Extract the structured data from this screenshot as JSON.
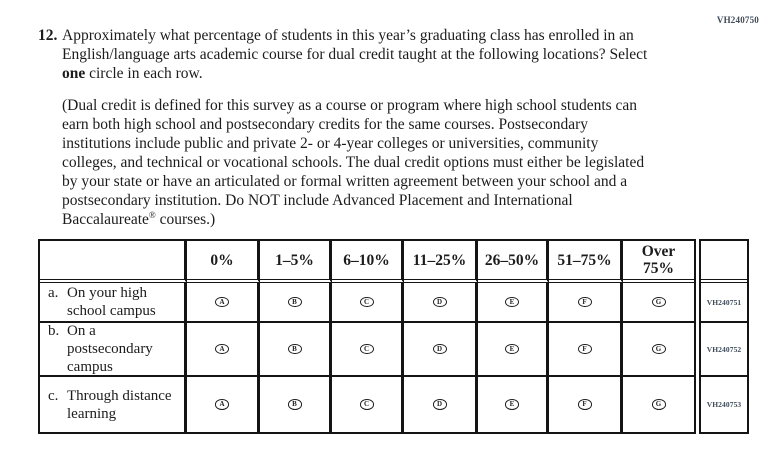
{
  "page": {
    "top_code": "VH240750"
  },
  "question": {
    "number": "12.",
    "intro_before_bold": "Approximately what percentage of students in this year’s graduating class has enrolled in an English/language arts academic course for dual credit taught at the following locations? Select ",
    "intro_bold": "one",
    "intro_after_bold": " circle in each row.",
    "definition_main": "(Dual credit is defined for this survey as a course or program where high school students can earn both high school and postsecondary credits for the same courses. Postsecondary institutions include public and private 2- or 4-year colleges or universities, community colleges, and technical or vocational schools. The dual credit options must either be legislated by your state or have an articulated or formal written agreement between your school and a postsecondary institution. Do NOT include Advanced Placement and International Baccalaureate",
    "definition_trademark": "®",
    "definition_end": " courses.)"
  },
  "table": {
    "column_headers": [
      "0%",
      "1–5%",
      "6–10%",
      "11–25%",
      "26–50%",
      "51–75%",
      "Over\n75%"
    ],
    "option_letters": [
      "A",
      "B",
      "C",
      "D",
      "E",
      "F",
      "G"
    ],
    "rows": [
      {
        "prefix": "a.",
        "label": "On your high school campus",
        "code": "VH240751"
      },
      {
        "prefix": "b.",
        "label": "On a postsecondary campus",
        "code": "VH240752"
      },
      {
        "prefix": "c.",
        "label": "Through distance learning",
        "code": "VH240753"
      }
    ]
  }
}
